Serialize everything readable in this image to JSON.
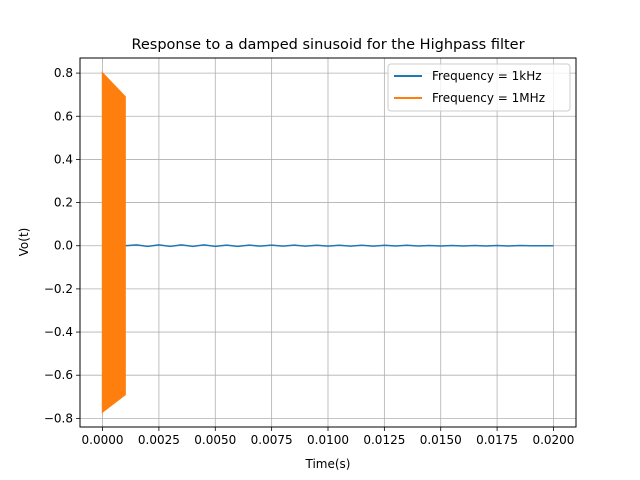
{
  "chart_data": {
    "type": "line",
    "title": "Response to a damped sinusoid for the Highpass filter",
    "xlabel": "Time(s)",
    "ylabel": "Vo(t)",
    "xlim": [
      -0.001,
      0.021
    ],
    "ylim": [
      -0.84,
      0.87
    ],
    "grid": true,
    "legend_position": "top-right",
    "x_ticks": [
      0.0,
      0.0025,
      0.005,
      0.0075,
      0.01,
      0.0125,
      0.015,
      0.0175,
      0.02
    ],
    "x_tick_labels": [
      "0.0000",
      "0.0025",
      "0.0050",
      "0.0075",
      "0.0100",
      "0.0125",
      "0.0150",
      "0.0175",
      "0.0200"
    ],
    "y_ticks": [
      -0.8,
      -0.6,
      -0.4,
      -0.2,
      0.0,
      0.2,
      0.4,
      0.6,
      0.8
    ],
    "y_tick_labels": [
      "−0.8",
      "−0.6",
      "−0.4",
      "−0.2",
      "0.0",
      "0.2",
      "0.4",
      "0.6",
      "0.8"
    ],
    "series": [
      {
        "name": "Frequency = 1kHz",
        "color": "#1f77b4",
        "x": [
          0.001,
          0.0015,
          0.002,
          0.0025,
          0.003,
          0.0035,
          0.004,
          0.0045,
          0.005,
          0.0055,
          0.006,
          0.0065,
          0.007,
          0.0075,
          0.008,
          0.0085,
          0.009,
          0.0095,
          0.01,
          0.0105,
          0.011,
          0.0115,
          0.012,
          0.0125,
          0.013,
          0.0135,
          0.014,
          0.0145,
          0.015,
          0.0155,
          0.016,
          0.0165,
          0.017,
          0.0175,
          0.018,
          0.0185,
          0.019,
          0.0195,
          0.02
        ],
        "y": [
          0.0,
          0.004,
          -0.003,
          0.004,
          -0.003,
          0.004,
          -0.003,
          0.004,
          -0.003,
          0.003,
          -0.003,
          0.003,
          -0.002,
          0.003,
          -0.002,
          0.003,
          -0.002,
          0.002,
          -0.002,
          0.002,
          -0.002,
          0.002,
          -0.002,
          0.002,
          -0.001,
          0.002,
          -0.001,
          0.001,
          -0.001,
          0.001,
          -0.001,
          0.001,
          -0.001,
          0.001,
          -0.001,
          0.001,
          0.0,
          0.0,
          0.0
        ]
      },
      {
        "name": "Frequency = 1MHz",
        "color": "#ff7f0e",
        "x_range": [
          0.0,
          0.001
        ],
        "upper_envelope": [
          [
            0.0,
            0.8
          ],
          [
            0.001,
            0.69
          ]
        ],
        "lower_envelope": [
          [
            0.0,
            -0.77
          ],
          [
            0.001,
            -0.69
          ]
        ]
      }
    ]
  }
}
